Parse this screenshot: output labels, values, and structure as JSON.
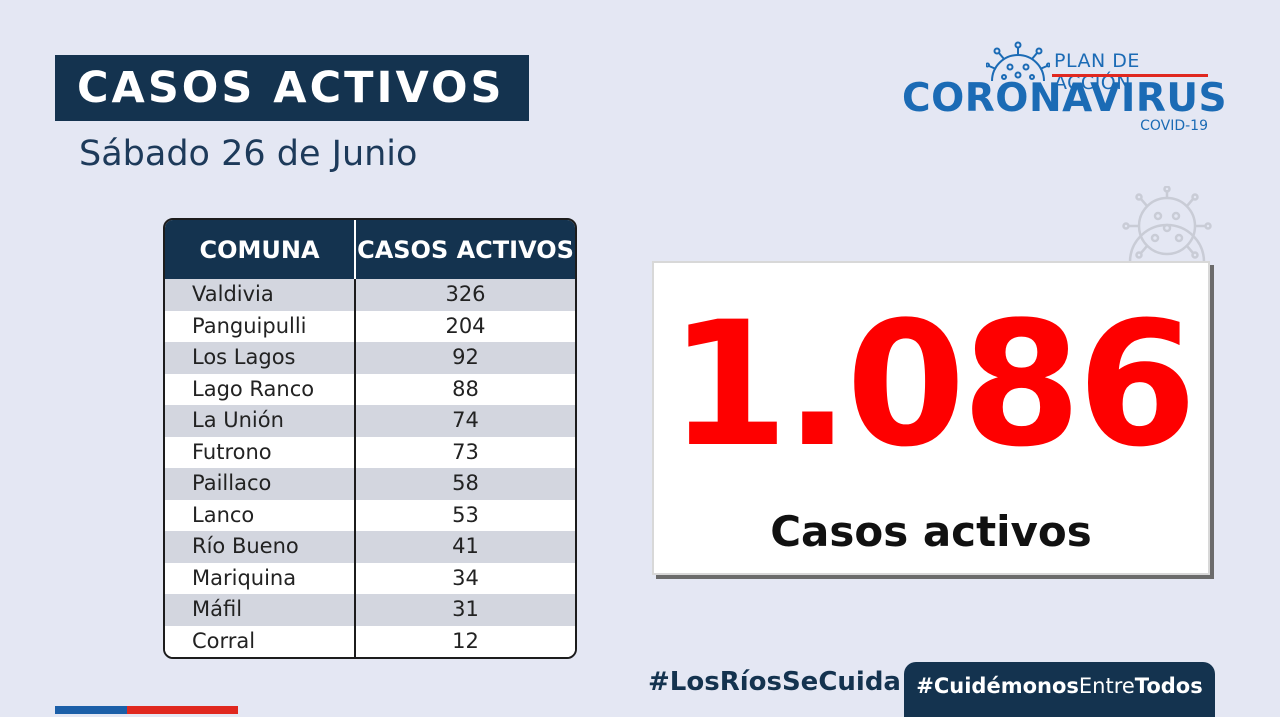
{
  "header": {
    "title": "CASOS ACTIVOS",
    "date": "Sábado 26 de Junio"
  },
  "logo": {
    "plan": "PLAN DE ACCIÓN",
    "name": "CORONAVIRUS",
    "sub": "COVID-19"
  },
  "table": {
    "headers": [
      "COMUNA",
      "CASOS ACTIVOS"
    ],
    "rows": [
      {
        "comuna": "Valdivia",
        "casos": "326"
      },
      {
        "comuna": "Panguipulli",
        "casos": "204"
      },
      {
        "comuna": "Los Lagos",
        "casos": "92"
      },
      {
        "comuna": "Lago Ranco",
        "casos": "88"
      },
      {
        "comuna": "La Unión",
        "casos": "74"
      },
      {
        "comuna": "Futrono",
        "casos": "73"
      },
      {
        "comuna": "Paillaco",
        "casos": "58"
      },
      {
        "comuna": "Lanco",
        "casos": "53"
      },
      {
        "comuna": "Río Bueno",
        "casos": "41"
      },
      {
        "comuna": "Mariquina",
        "casos": "34"
      },
      {
        "comuna": "Máfil",
        "casos": "31"
      },
      {
        "comuna": "Corral",
        "casos": "12"
      }
    ]
  },
  "total": {
    "value": "1.086",
    "label": "Casos activos"
  },
  "hashtags": {
    "first": "#LosRíosSeCuida",
    "second_prefix": "#Cuidémonos",
    "second_mid": "Entre",
    "second_suffix": "Todos"
  },
  "colors": {
    "navy": "#14334f",
    "brand_blue": "#1b6bb5",
    "accent_red": "#e0281f",
    "total_red": "#fe0000",
    "background": "#e4e7f3"
  },
  "icons": {
    "logo": "virus-icon",
    "decoration": "virus-icon"
  }
}
